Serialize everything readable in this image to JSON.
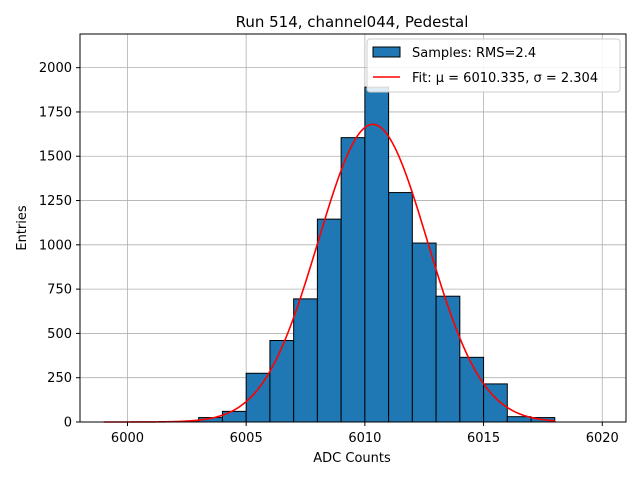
{
  "chart_data": {
    "type": "bar",
    "title": "Run 514, channel044, Pedestal",
    "xlabel": "ADC Counts",
    "ylabel": "Entries",
    "xlim": [
      5998,
      6021
    ],
    "ylim": [
      0,
      2190
    ],
    "grid": true,
    "x_ticks": [
      6000,
      6005,
      6010,
      6015,
      6020
    ],
    "y_ticks": [
      0,
      250,
      500,
      750,
      1000,
      1250,
      1500,
      1750,
      2000
    ],
    "bins": {
      "left_edges": [
        6000,
        6001,
        6002,
        6003,
        6004,
        6005,
        6006,
        6007,
        6008,
        6009,
        6010,
        6011,
        6012,
        6013,
        6014,
        6015,
        6016,
        6017,
        6018,
        6019
      ],
      "width": 1,
      "counts": [
        0,
        0,
        2,
        25,
        60,
        275,
        460,
        695,
        1145,
        1605,
        1890,
        1295,
        1010,
        710,
        365,
        215,
        30,
        25,
        0,
        0
      ]
    },
    "fit": {
      "mu": 6010.335,
      "sigma": 2.304,
      "amplitude": 1680,
      "x_range": [
        5999,
        6018
      ],
      "color": "#ff0000"
    },
    "bar_color": "#1f77b4",
    "legend": {
      "placement": "top-right",
      "entries": [
        {
          "type": "bar",
          "label": "Samples: RMS=2.4"
        },
        {
          "type": "line",
          "label_prefix": "Fit: ",
          "label": "Fit: μ = 6010.335, σ = 2.304"
        }
      ]
    }
  }
}
